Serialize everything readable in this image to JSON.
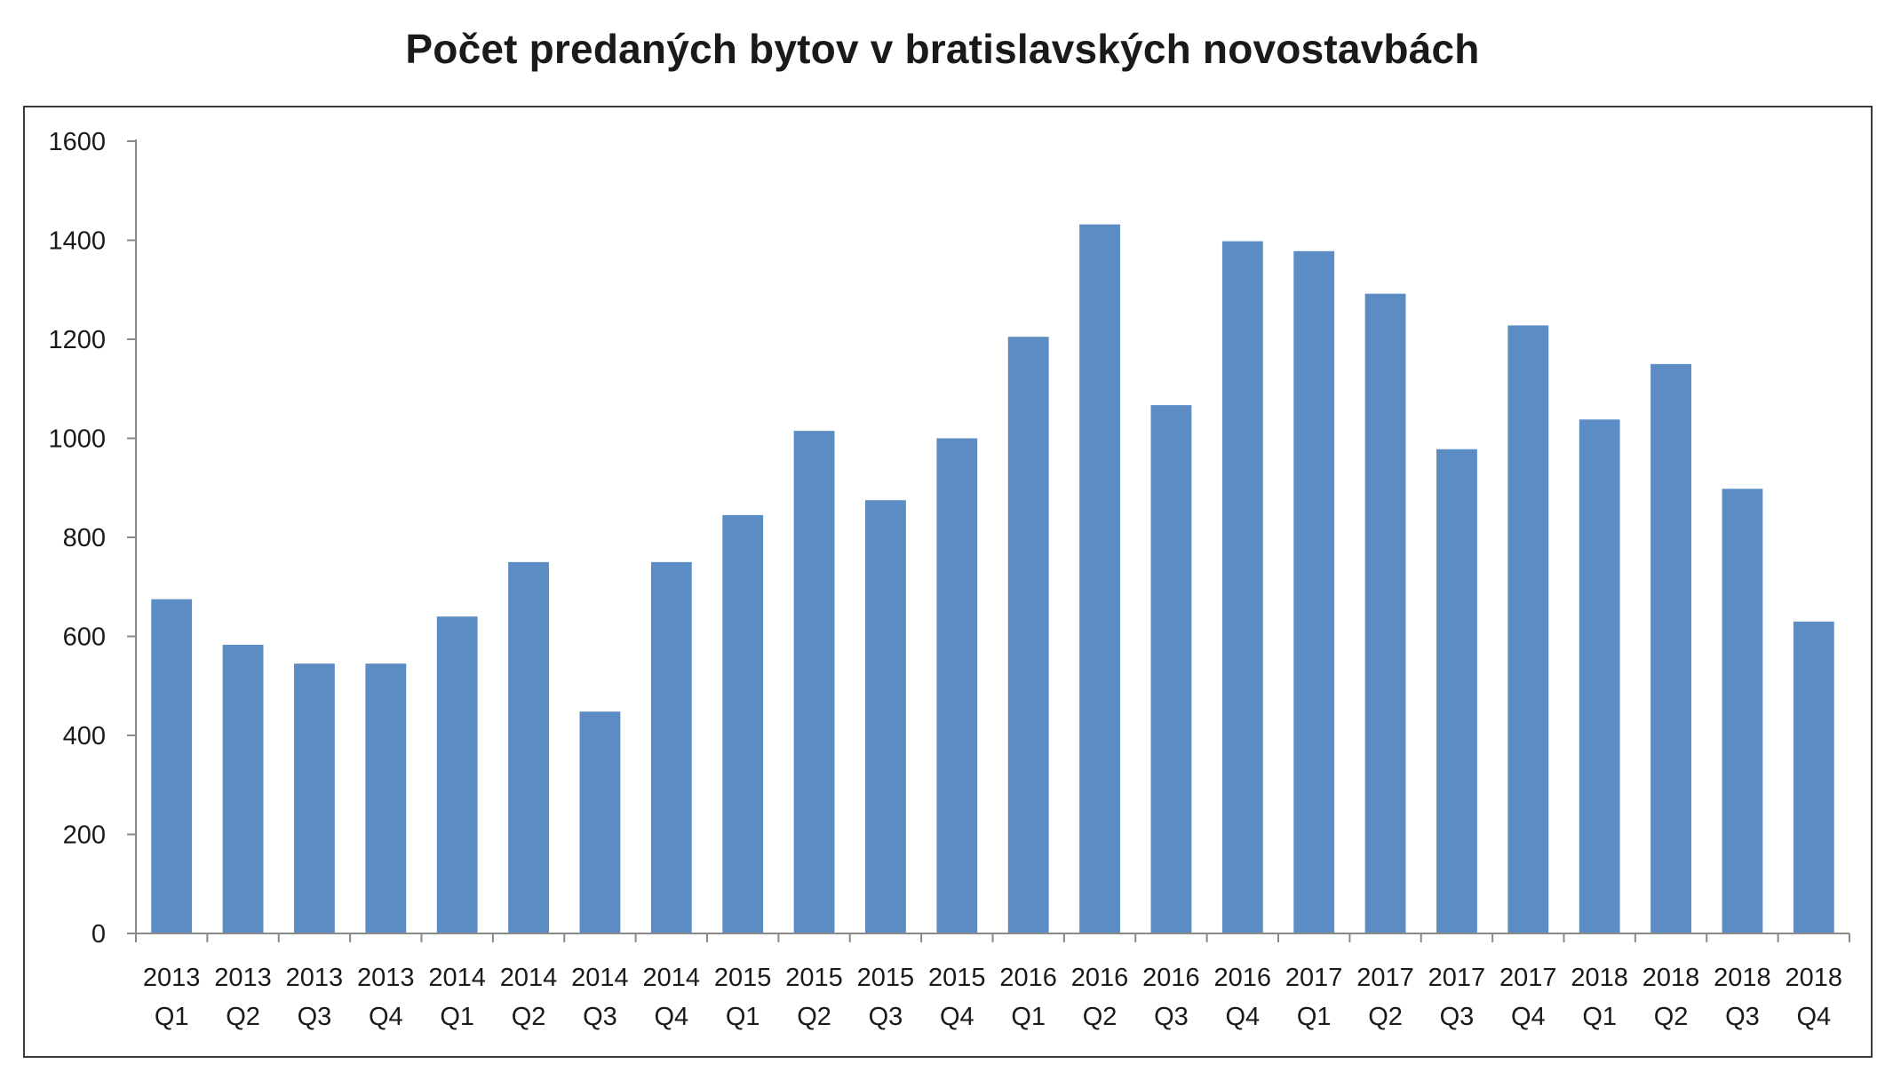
{
  "chart_data": {
    "type": "bar",
    "title": "Počet predaných bytov v bratislavských novostavbách",
    "xlabel": "",
    "ylabel": "",
    "ylim": [
      0,
      1600
    ],
    "yticks": [
      "0",
      "200",
      "400",
      "600",
      "800",
      "1000",
      "1200",
      "1400",
      "1600"
    ],
    "grid": false,
    "legend": "none",
    "bar_color": "#5b8cc4",
    "categories": [
      {
        "year": "2013",
        "quarter": "Q1"
      },
      {
        "year": "2013",
        "quarter": "Q2"
      },
      {
        "year": "2013",
        "quarter": "Q3"
      },
      {
        "year": "2013",
        "quarter": "Q4"
      },
      {
        "year": "2014",
        "quarter": "Q1"
      },
      {
        "year": "2014",
        "quarter": "Q2"
      },
      {
        "year": "2014",
        "quarter": "Q3"
      },
      {
        "year": "2014",
        "quarter": "Q4"
      },
      {
        "year": "2015",
        "quarter": "Q1"
      },
      {
        "year": "2015",
        "quarter": "Q2"
      },
      {
        "year": "2015",
        "quarter": "Q3"
      },
      {
        "year": "2015",
        "quarter": "Q4"
      },
      {
        "year": "2016",
        "quarter": "Q1"
      },
      {
        "year": "2016",
        "quarter": "Q2"
      },
      {
        "year": "2016",
        "quarter": "Q3"
      },
      {
        "year": "2016",
        "quarter": "Q4"
      },
      {
        "year": "2017",
        "quarter": "Q1"
      },
      {
        "year": "2017",
        "quarter": "Q2"
      },
      {
        "year": "2017",
        "quarter": "Q3"
      },
      {
        "year": "2017",
        "quarter": "Q4"
      },
      {
        "year": "2018",
        "quarter": "Q1"
      },
      {
        "year": "2018",
        "quarter": "Q2"
      },
      {
        "year": "2018",
        "quarter": "Q3"
      },
      {
        "year": "2018",
        "quarter": "Q4"
      }
    ],
    "values": [
      675,
      583,
      545,
      545,
      640,
      750,
      448,
      750,
      845,
      1015,
      875,
      1000,
      1205,
      1432,
      1067,
      1398,
      1378,
      1292,
      978,
      1228,
      1038,
      1150,
      898,
      630
    ]
  }
}
